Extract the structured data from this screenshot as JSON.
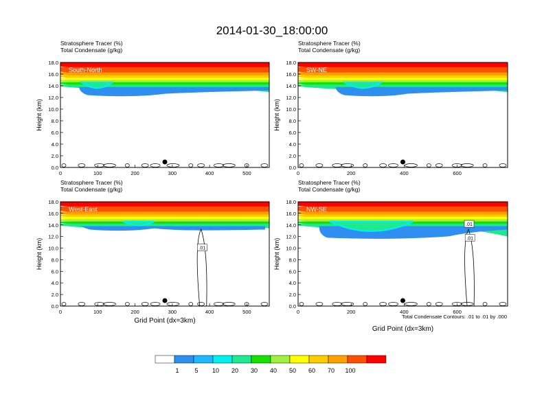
{
  "figure": {
    "title": "2014-01-30_18:00:00",
    "footnote": "Total Condensate Contours: .01 to .01 by .000"
  },
  "colorbar": {
    "labels": [
      "1",
      "5",
      "10",
      "20",
      "30",
      "40",
      "50",
      "60",
      "70",
      "100"
    ],
    "colors": [
      "#ffffff",
      "#2f8ff0",
      "#1fb7ff",
      "#00f0f0",
      "#1ee890",
      "#17e000",
      "#a0f040",
      "#ffff00",
      "#ffcc00",
      "#ffa000",
      "#ff5000",
      "#ff0000"
    ]
  },
  "chart_data": [
    {
      "type": "heatmap",
      "panel_label": "South-North",
      "header": [
        "Stratosphere Tracer   (%)",
        "Total Condensate   (g/kg)"
      ],
      "ylabel": "Height (km)",
      "xlabel": "",
      "xlim": [
        0,
        560
      ],
      "ylim": [
        0,
        18
      ],
      "xticks": [
        0,
        100,
        200,
        300,
        400,
        500
      ],
      "yticks": [
        "0.0",
        "2.0",
        "4.0",
        "6.0",
        "8.0",
        "10.0",
        "12.0",
        "14.0",
        "16.0",
        "18.0"
      ],
      "marker_x": 280,
      "contour_labels": []
    },
    {
      "type": "heatmap",
      "panel_label": "SW-NE",
      "header": [
        "Stratosphere Tracer   (%)",
        "Total Condensate   (g/kg)"
      ],
      "ylabel": "Height (km)",
      "xlabel": "",
      "xlim": [
        0,
        790
      ],
      "ylim": [
        0,
        18
      ],
      "xticks": [
        0,
        200,
        400,
        600
      ],
      "yticks": [
        "0.0",
        "2.0",
        "4.0",
        "6.0",
        "8.0",
        "10.0",
        "12.0",
        "14.0",
        "16.0",
        "18.0"
      ],
      "marker_x": 395,
      "contour_labels": []
    },
    {
      "type": "heatmap",
      "panel_label": "West-East",
      "header": [
        "Stratosphere Tracer   (%)",
        "Total Condensate   (g/kg)"
      ],
      "ylabel": "Height (km)",
      "xlabel": "Grid Point (dx=3km)",
      "xlim": [
        0,
        560
      ],
      "ylim": [
        0,
        18
      ],
      "xticks": [
        0,
        100,
        200,
        300,
        400,
        500
      ],
      "yticks": [
        "0.0",
        "2.0",
        "4.0",
        "6.0",
        "8.0",
        "10.0",
        "12.0",
        "14.0",
        "16.0",
        "18.0"
      ],
      "marker_x": 280,
      "contour_labels": [
        {
          "x": 380,
          "y": 10.1,
          "text": ".01"
        }
      ]
    },
    {
      "type": "heatmap",
      "panel_label": "NW-SE",
      "header": [
        "Stratosphere Tracer   (%)",
        "Total Condensate   (g/kg)"
      ],
      "ylabel": "Height (km)",
      "xlabel": "Grid Point (dx=3km)",
      "xlim": [
        0,
        790
      ],
      "ylim": [
        0,
        18
      ],
      "xticks": [
        0,
        200,
        400,
        600
      ],
      "yticks": [
        "0.0",
        "2.0",
        "4.0",
        "6.0",
        "8.0",
        "10.0",
        "12.0",
        "14.0",
        "16.0",
        "18.0"
      ],
      "marker_x": 395,
      "contour_labels": [
        {
          "x": 645,
          "y": 14.2,
          "text": ".01"
        },
        {
          "x": 648,
          "y": 11.8,
          "text": ".01"
        }
      ]
    }
  ]
}
